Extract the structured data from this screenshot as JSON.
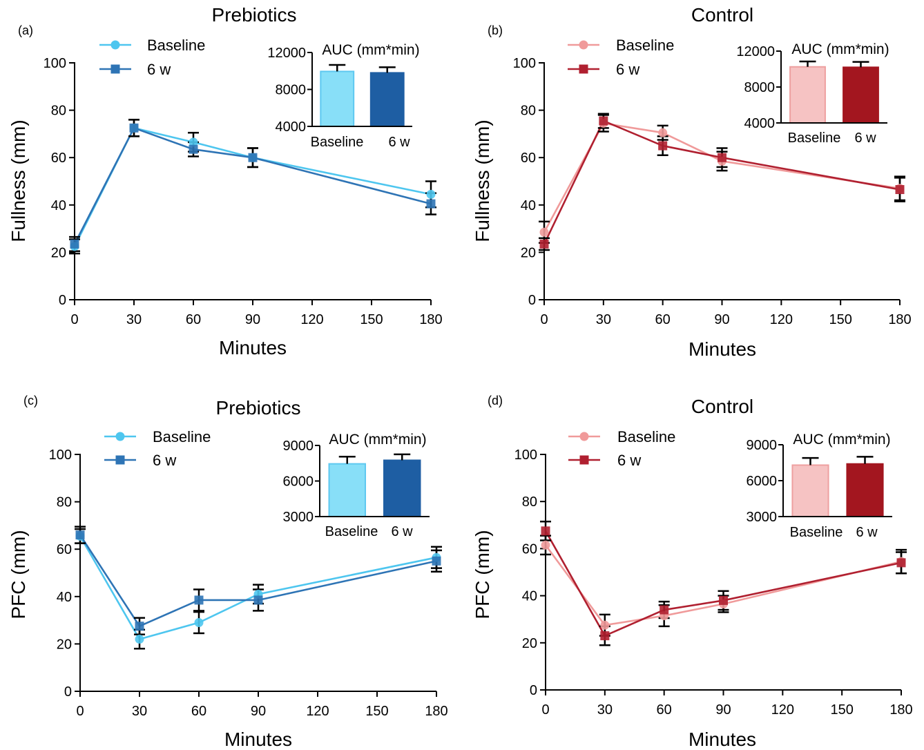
{
  "chart_data": [
    {
      "type": "line",
      "panel": "(a)",
      "title": "Prebiotics",
      "xlabel": "Minutes",
      "ylabel": "Fullness (mm)",
      "xlim": [
        0,
        180
      ],
      "ylim": [
        0,
        100
      ],
      "xticks": [
        0,
        30,
        60,
        90,
        120,
        150,
        180
      ],
      "yticks": [
        0,
        20,
        40,
        60,
        80,
        100
      ],
      "legend_position": "top-left",
      "series": [
        {
          "name": "Baseline",
          "marker": "circle",
          "color": "#4ec6ef",
          "x": [
            0,
            30,
            60,
            90,
            180
          ],
          "y": [
            22.5,
            72.5,
            66.5,
            60,
            44.5
          ],
          "err": [
            3,
            3.5,
            4,
            4,
            5.5
          ]
        },
        {
          "name": "6 w",
          "marker": "square",
          "color": "#2e74b5",
          "x": [
            0,
            30,
            60,
            90,
            180
          ],
          "y": [
            23.5,
            72.5,
            63.5,
            60,
            40.5
          ],
          "err": [
            3,
            3.5,
            3,
            4,
            4.5
          ]
        }
      ],
      "inset": {
        "title": "AUC (mm*min)",
        "ylim": [
          4000,
          12000
        ],
        "yticks": [
          4000,
          8000,
          12000
        ],
        "categories": [
          "Baseline",
          "6 w"
        ],
        "values": [
          9950,
          9800
        ],
        "errors": [
          700,
          600
        ],
        "fills": [
          "#88dff8",
          "#1e5ea3"
        ],
        "strokes": [
          "#5ec8f0",
          "#1e5ea3"
        ]
      }
    },
    {
      "type": "line",
      "panel": "(b)",
      "title": "Control",
      "xlabel": "Minutes",
      "ylabel": "Fullness  (mm)",
      "xlim": [
        0,
        180
      ],
      "ylim": [
        0,
        100
      ],
      "xticks": [
        0,
        30,
        60,
        90,
        120,
        150,
        180
      ],
      "yticks": [
        0,
        20,
        40,
        60,
        80,
        100
      ],
      "legend_position": "top-left",
      "series": [
        {
          "name": "Baseline",
          "marker": "circle",
          "color": "#f09a9a",
          "x": [
            0,
            30,
            60,
            90,
            180
          ],
          "y": [
            28.5,
            74.5,
            70.5,
            58.5,
            47
          ],
          "err": [
            4.5,
            3.5,
            3,
            4,
            5
          ]
        },
        {
          "name": "6 w",
          "marker": "square",
          "color": "#b02030",
          "x": [
            0,
            30,
            60,
            90,
            180
          ],
          "y": [
            23.5,
            75.5,
            65,
            60,
            46.5
          ],
          "err": [
            2.5,
            3,
            4,
            4,
            5
          ]
        }
      ],
      "inset": {
        "title": "AUC (mm*min)",
        "ylim": [
          4000,
          12000
        ],
        "yticks": [
          4000,
          8000,
          12000
        ],
        "categories": [
          "Baseline",
          "6 w"
        ],
        "values": [
          10250,
          10200
        ],
        "errors": [
          600,
          600
        ],
        "fills": [
          "#f6c3c3",
          "#a3161f"
        ],
        "strokes": [
          "#eea0a0",
          "#a3161f"
        ]
      }
    },
    {
      "type": "line",
      "panel": "(c)",
      "title": "Prebiotics",
      "xlabel": "Minutes",
      "ylabel": "PFC (mm)",
      "xlim": [
        0,
        180
      ],
      "ylim": [
        0,
        100
      ],
      "xticks": [
        0,
        30,
        60,
        90,
        120,
        150,
        180
      ],
      "yticks": [
        0,
        20,
        40,
        60,
        80,
        100
      ],
      "legend_position": "top-left",
      "series": [
        {
          "name": "Baseline",
          "marker": "circle",
          "color": "#4ec6ef",
          "x": [
            0,
            30,
            60,
            90,
            180
          ],
          "y": [
            65.5,
            22,
            29,
            41,
            56.5
          ],
          "err": [
            3,
            4,
            4.5,
            4,
            4.5
          ]
        },
        {
          "name": "6 w",
          "marker": "square",
          "color": "#2e74b5",
          "x": [
            0,
            30,
            60,
            90,
            180
          ],
          "y": [
            66,
            27.5,
            38.5,
            38.5,
            55
          ],
          "err": [
            3.5,
            3.5,
            4.5,
            4.5,
            4.5
          ]
        }
      ],
      "inset": {
        "title": "AUC (mm*min)",
        "ylim": [
          3000,
          9000
        ],
        "yticks": [
          3000,
          6000,
          9000
        ],
        "categories": [
          "Baseline",
          "6 w"
        ],
        "values": [
          7450,
          7750
        ],
        "errors": [
          600,
          500
        ],
        "fills": [
          "#88dff8",
          "#1e5ea3"
        ],
        "strokes": [
          "#5ec8f0",
          "#1e5ea3"
        ]
      }
    },
    {
      "type": "line",
      "panel": "(d)",
      "title": "Control",
      "xlabel": "Minutes",
      "ylabel": "PFC  (mm)",
      "xlim": [
        0,
        180
      ],
      "ylim": [
        0,
        100
      ],
      "xticks": [
        0,
        30,
        60,
        90,
        120,
        150,
        180
      ],
      "yticks": [
        0,
        20,
        40,
        60,
        80,
        100
      ],
      "legend_position": "top-left",
      "series": [
        {
          "name": "Baseline",
          "marker": "circle",
          "color": "#f09a9a",
          "x": [
            0,
            30,
            60,
            90,
            180
          ],
          "y": [
            61.5,
            27.5,
            31.5,
            36.5,
            54.5
          ],
          "err": [
            4,
            4.5,
            4.5,
            3.5,
            5
          ]
        },
        {
          "name": "6 w",
          "marker": "square",
          "color": "#b02030",
          "x": [
            0,
            30,
            60,
            90,
            180
          ],
          "y": [
            67.5,
            23,
            34,
            38,
            54
          ],
          "err": [
            4,
            4,
            3.5,
            4,
            4.5
          ]
        }
      ],
      "inset": {
        "title": "AUC (mm*min)",
        "ylim": [
          3000,
          9000
        ],
        "yticks": [
          3000,
          6000,
          9000
        ],
        "categories": [
          "Baseline",
          "6 w"
        ],
        "values": [
          7300,
          7400
        ],
        "errors": [
          600,
          600
        ],
        "fills": [
          "#f6c3c3",
          "#a3161f"
        ],
        "strokes": [
          "#eea0a0",
          "#a3161f"
        ]
      }
    }
  ]
}
